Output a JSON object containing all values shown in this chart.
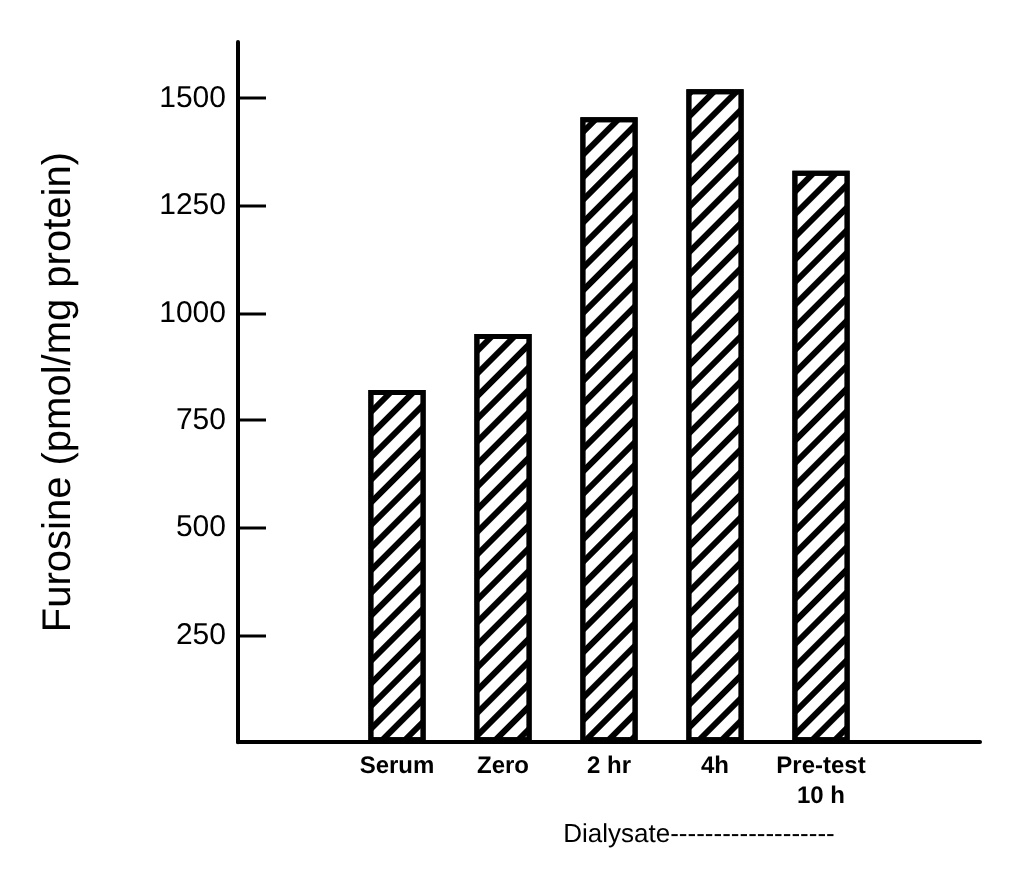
{
  "chart_data": {
    "type": "bar",
    "ylabel": "Furosine (pmol/mg protein)",
    "xlabel": "Dialysate-------------------",
    "categories": [
      "Serum",
      "Zero",
      "2 hr",
      "4h",
      "Pre-test\n10 h"
    ],
    "values": [
      820,
      950,
      1455,
      1520,
      1330
    ],
    "color": "#000000",
    "ylim": [
      0,
      1630
    ],
    "yticks": [
      {
        "value": 0,
        "label": null
      },
      250,
      500,
      750,
      1000,
      1250,
      1500
    ],
    "grid": false
  }
}
